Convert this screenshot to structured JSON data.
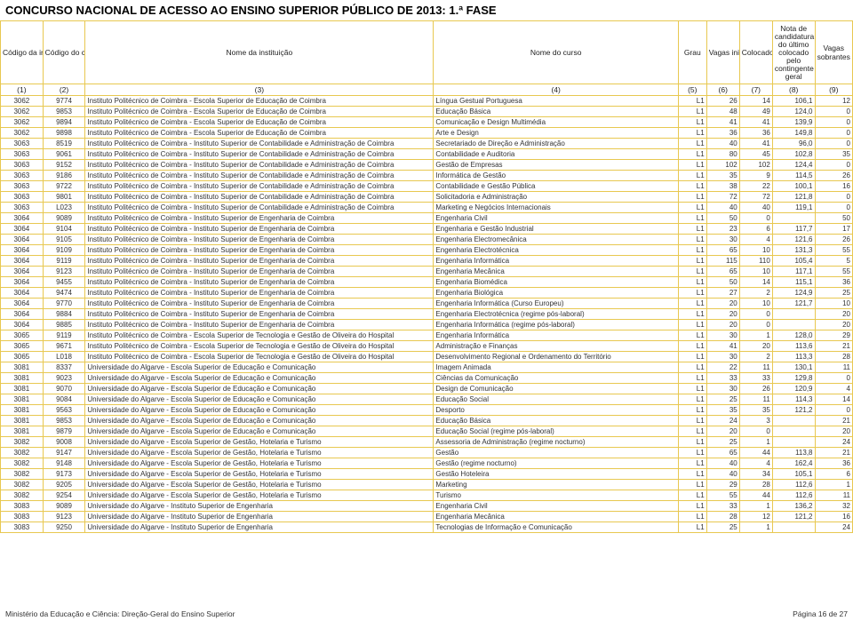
{
  "title": "CONCURSO NACIONAL DE ACESSO AO ENSINO SUPERIOR PÚBLICO DE 2013: 1.ª FASE",
  "headers": {
    "h1": "Código da instituição",
    "h2": "Código do curso",
    "h3": "Nome da instituição",
    "h4": "Nome do curso",
    "h5": "Grau",
    "h6": "Vagas iniciais",
    "h7": "Colocados",
    "h8": "Nota de candidatura do último colocado pelo contingente geral",
    "h9": "Vagas sobrantes"
  },
  "subheaders": {
    "s1": "(1)",
    "s2": "(2)",
    "s3": "(3)",
    "s4": "(4)",
    "s5": "(5)",
    "s6": "(6)",
    "s7": "(7)",
    "s8": "(8)",
    "s9": "(9)"
  },
  "rows": [
    [
      "3062",
      "9774",
      "Instituto Politécnico de Coimbra - Escola Superior de Educação de Coimbra",
      "Língua Gestual Portuguesa",
      "L1",
      "26",
      "14",
      "106,1",
      "12"
    ],
    [
      "3062",
      "9853",
      "Instituto Politécnico de Coimbra - Escola Superior de Educação de Coimbra",
      "Educação Básica",
      "L1",
      "48",
      "49",
      "124,0",
      "0"
    ],
    [
      "3062",
      "9894",
      "Instituto Politécnico de Coimbra - Escola Superior de Educação de Coimbra",
      "Comunicação e Design Multimédia",
      "L1",
      "41",
      "41",
      "139,9",
      "0"
    ],
    [
      "3062",
      "9898",
      "Instituto Politécnico de Coimbra - Escola Superior de Educação de Coimbra",
      "Arte e Design",
      "L1",
      "36",
      "36",
      "149,8",
      "0"
    ],
    [
      "3063",
      "8519",
      "Instituto Politécnico de Coimbra - Instituto Superior de Contabilidade e Administração de Coimbra",
      "Secretariado de Direção e Administração",
      "L1",
      "40",
      "41",
      "96,0",
      "0"
    ],
    [
      "3063",
      "9061",
      "Instituto Politécnico de Coimbra - Instituto Superior de Contabilidade e Administração de Coimbra",
      "Contabilidade e Auditoria",
      "L1",
      "80",
      "45",
      "102,8",
      "35"
    ],
    [
      "3063",
      "9152",
      "Instituto Politécnico de Coimbra - Instituto Superior de Contabilidade e Administração de Coimbra",
      "Gestão de Empresas",
      "L1",
      "102",
      "102",
      "124,4",
      "0"
    ],
    [
      "3063",
      "9186",
      "Instituto Politécnico de Coimbra - Instituto Superior de Contabilidade e Administração de Coimbra",
      "Informática de Gestão",
      "L1",
      "35",
      "9",
      "114,5",
      "26"
    ],
    [
      "3063",
      "9722",
      "Instituto Politécnico de Coimbra - Instituto Superior de Contabilidade e Administração de Coimbra",
      "Contabilidade e Gestão Pública",
      "L1",
      "38",
      "22",
      "100,1",
      "16"
    ],
    [
      "3063",
      "9801",
      "Instituto Politécnico de Coimbra - Instituto Superior de Contabilidade e Administração de Coimbra",
      "Solicitadoria e Administração",
      "L1",
      "72",
      "72",
      "121,8",
      "0"
    ],
    [
      "3063",
      "L023",
      "Instituto Politécnico de Coimbra - Instituto Superior de Contabilidade e Administração de Coimbra",
      "Marketing e Negócios Internacionais",
      "L1",
      "40",
      "40",
      "119,1",
      "0"
    ],
    [
      "3064",
      "9089",
      "Instituto Politécnico de Coimbra - Instituto Superior de Engenharia de Coimbra",
      "Engenharia Civil",
      "L1",
      "50",
      "0",
      "",
      "50"
    ],
    [
      "3064",
      "9104",
      "Instituto Politécnico de Coimbra - Instituto Superior de Engenharia de Coimbra",
      "Engenharia e Gestão Industrial",
      "L1",
      "23",
      "6",
      "117,7",
      "17"
    ],
    [
      "3064",
      "9105",
      "Instituto Politécnico de Coimbra - Instituto Superior de Engenharia de Coimbra",
      "Engenharia Electromecânica",
      "L1",
      "30",
      "4",
      "121,6",
      "26"
    ],
    [
      "3064",
      "9109",
      "Instituto Politécnico de Coimbra - Instituto Superior de Engenharia de Coimbra",
      "Engenharia Electrotécnica",
      "L1",
      "65",
      "10",
      "131,3",
      "55"
    ],
    [
      "3064",
      "9119",
      "Instituto Politécnico de Coimbra - Instituto Superior de Engenharia de Coimbra",
      "Engenharia Informática",
      "L1",
      "115",
      "110",
      "105,4",
      "5"
    ],
    [
      "3064",
      "9123",
      "Instituto Politécnico de Coimbra - Instituto Superior de Engenharia de Coimbra",
      "Engenharia Mecânica",
      "L1",
      "65",
      "10",
      "117,1",
      "55"
    ],
    [
      "3064",
      "9455",
      "Instituto Politécnico de Coimbra - Instituto Superior de Engenharia de Coimbra",
      "Engenharia Biomédica",
      "L1",
      "50",
      "14",
      "115,1",
      "36"
    ],
    [
      "3064",
      "9474",
      "Instituto Politécnico de Coimbra - Instituto Superior de Engenharia de Coimbra",
      "Engenharia Biológica",
      "L1",
      "27",
      "2",
      "124,9",
      "25"
    ],
    [
      "3064",
      "9770",
      "Instituto Politécnico de Coimbra - Instituto Superior de Engenharia de Coimbra",
      "Engenharia Informática (Curso Europeu)",
      "L1",
      "20",
      "10",
      "121,7",
      "10"
    ],
    [
      "3064",
      "9884",
      "Instituto Politécnico de Coimbra - Instituto Superior de Engenharia de Coimbra",
      "Engenharia Electrotécnica (regime pós-laboral)",
      "L1",
      "20",
      "0",
      "",
      "20"
    ],
    [
      "3064",
      "9885",
      "Instituto Politécnico de Coimbra - Instituto Superior de Engenharia de Coimbra",
      "Engenharia Informática (regime pós-laboral)",
      "L1",
      "20",
      "0",
      "",
      "20"
    ],
    [
      "3065",
      "9119",
      "Instituto Politécnico de Coimbra - Escola Superior de Tecnologia e Gestão de Oliveira do Hospital",
      "Engenharia Informática",
      "L1",
      "30",
      "1",
      "128,0",
      "29"
    ],
    [
      "3065",
      "9671",
      "Instituto Politécnico de Coimbra - Escola Superior de Tecnologia e Gestão de Oliveira do Hospital",
      "Administração e Finanças",
      "L1",
      "41",
      "20",
      "113,6",
      "21"
    ],
    [
      "3065",
      "L018",
      "Instituto Politécnico de Coimbra - Escola Superior de Tecnologia e Gestão de Oliveira do Hospital",
      "Desenvolvimento Regional e Ordenamento do Território",
      "L1",
      "30",
      "2",
      "113,3",
      "28"
    ],
    [
      "3081",
      "8337",
      "Universidade do Algarve - Escola Superior de Educação e Comunicação",
      "Imagem Animada",
      "L1",
      "22",
      "11",
      "130,1",
      "11"
    ],
    [
      "3081",
      "9023",
      "Universidade do Algarve - Escola Superior de Educação e Comunicação",
      "Ciências da Comunicação",
      "L1",
      "33",
      "33",
      "129,8",
      "0"
    ],
    [
      "3081",
      "9070",
      "Universidade do Algarve - Escola Superior de Educação e Comunicação",
      "Design de Comunicação",
      "L1",
      "30",
      "26",
      "120,9",
      "4"
    ],
    [
      "3081",
      "9084",
      "Universidade do Algarve - Escola Superior de Educação e Comunicação",
      "Educação Social",
      "L1",
      "25",
      "11",
      "114,3",
      "14"
    ],
    [
      "3081",
      "9563",
      "Universidade do Algarve - Escola Superior de Educação e Comunicação",
      "Desporto",
      "L1",
      "35",
      "35",
      "121,2",
      "0"
    ],
    [
      "3081",
      "9853",
      "Universidade do Algarve - Escola Superior de Educação e Comunicação",
      "Educação Básica",
      "L1",
      "24",
      "3",
      "",
      "21"
    ],
    [
      "3081",
      "9879",
      "Universidade do Algarve - Escola Superior de Educação e Comunicação",
      "Educação Social (regime pós-laboral)",
      "L1",
      "20",
      "0",
      "",
      "20"
    ],
    [
      "3082",
      "9008",
      "Universidade do Algarve - Escola Superior de Gestão, Hotelaria e Turismo",
      "Assessoria de Administração (regime nocturno)",
      "L1",
      "25",
      "1",
      "",
      "24"
    ],
    [
      "3082",
      "9147",
      "Universidade do Algarve - Escola Superior de Gestão, Hotelaria e Turismo",
      "Gestão",
      "L1",
      "65",
      "44",
      "113,8",
      "21"
    ],
    [
      "3082",
      "9148",
      "Universidade do Algarve - Escola Superior de Gestão, Hotelaria e Turismo",
      "Gestão (regime nocturno)",
      "L1",
      "40",
      "4",
      "162,4",
      "36"
    ],
    [
      "3082",
      "9173",
      "Universidade do Algarve - Escola Superior de Gestão, Hotelaria e Turismo",
      "Gestão Hoteleira",
      "L1",
      "40",
      "34",
      "105,1",
      "6"
    ],
    [
      "3082",
      "9205",
      "Universidade do Algarve - Escola Superior de Gestão, Hotelaria e Turismo",
      "Marketing",
      "L1",
      "29",
      "28",
      "112,6",
      "1"
    ],
    [
      "3082",
      "9254",
      "Universidade do Algarve - Escola Superior de Gestão, Hotelaria e Turismo",
      "Turismo",
      "L1",
      "55",
      "44",
      "112,6",
      "11"
    ],
    [
      "3083",
      "9089",
      "Universidade do Algarve - Instituto Superior de Engenharia",
      "Engenharia Civil",
      "L1",
      "33",
      "1",
      "136,2",
      "32"
    ],
    [
      "3083",
      "9123",
      "Universidade do Algarve - Instituto Superior de Engenharia",
      "Engenharia Mecânica",
      "L1",
      "28",
      "12",
      "121,2",
      "16"
    ],
    [
      "3083",
      "9250",
      "Universidade do Algarve - Instituto Superior de Engenharia",
      "Tecnologias de Informação e Comunicação",
      "L1",
      "25",
      "1",
      "",
      "24"
    ]
  ],
  "footer": {
    "left": "Ministério da Educação e Ciência: Direção-Geral do Ensino Superior",
    "right": "Página 16 de 27"
  }
}
